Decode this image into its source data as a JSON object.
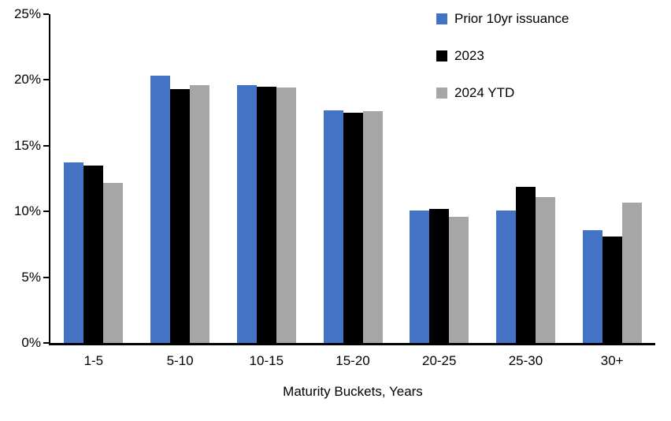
{
  "chart_data": {
    "type": "bar",
    "title": "",
    "categories": [
      "1-5",
      "5-10",
      "10-15",
      "15-20",
      "20-25",
      "25-30",
      "30+"
    ],
    "series": [
      {
        "name": "Prior 10yr issuance",
        "color": "#4472C4",
        "values": [
          13.7,
          20.3,
          19.6,
          17.7,
          10.1,
          10.1,
          8.6
        ]
      },
      {
        "name": "2023",
        "color": "#000000",
        "values": [
          13.5,
          19.3,
          19.5,
          17.5,
          10.2,
          11.9,
          8.1
        ]
      },
      {
        "name": "2024 YTD",
        "color": "#A6A6A6",
        "values": [
          12.2,
          19.6,
          19.4,
          17.6,
          9.6,
          11.1,
          10.7
        ]
      }
    ],
    "xlabel": "Maturity Buckets, Years",
    "ylabel": "",
    "ylim": [
      0,
      25
    ],
    "ytick_step": 5,
    "yticks": [
      "0%",
      "5%",
      "10%",
      "15%",
      "20%",
      "25%"
    ],
    "grid": false,
    "legend_position": "top-right",
    "axis_color": "#000000",
    "background_color": "#FFFFFF"
  }
}
